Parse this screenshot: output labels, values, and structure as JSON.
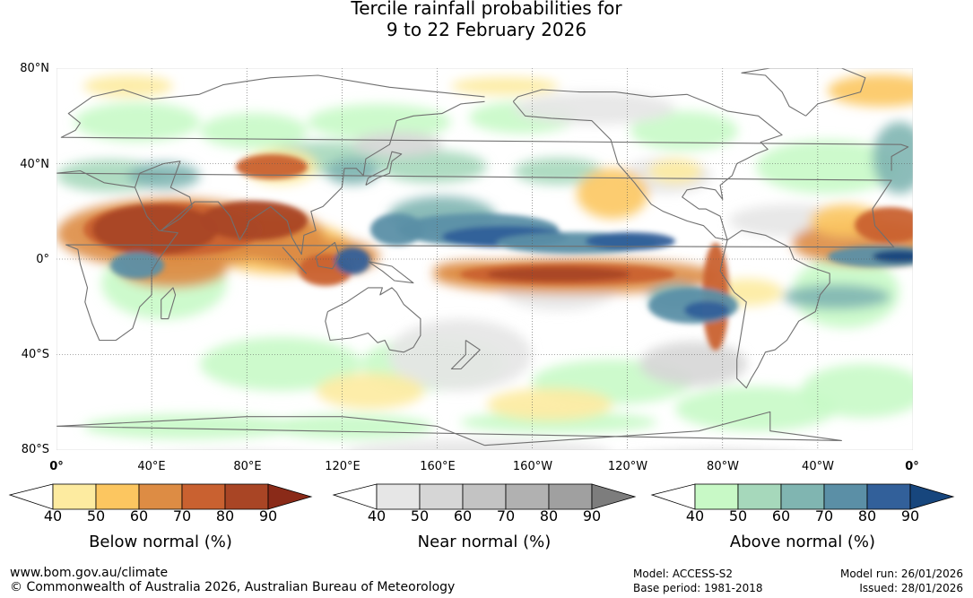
{
  "title_line1": "Tercile rainfall probabilities for",
  "title_line2": "9 to 22 February 2026",
  "map": {
    "lat_labels": [
      "80°N",
      "40°N",
      "0°",
      "40°S",
      "80°S"
    ],
    "lon_labels": [
      "0°",
      "40°E",
      "80°E",
      "120°E",
      "160°E",
      "160°W",
      "120°W",
      "80°W",
      "40°W",
      "0°"
    ],
    "colors": {
      "below": [
        "#fdeba0",
        "#fcc660",
        "#dd8c44",
        "#c96130",
        "#a94525",
        "#8a2a18"
      ],
      "near": [
        "#e6e6e6",
        "#d6d6d6",
        "#c3c3c3",
        "#b1b1b1",
        "#a0a0a0",
        "#7d7d7d"
      ],
      "above": [
        "#c8f9c6",
        "#a6d8bb",
        "#80b5b1",
        "#5b8fa6",
        "#32609a",
        "#17467d"
      ],
      "coast": "#707070"
    }
  },
  "legends": [
    {
      "title": "Below normal (%)",
      "ticks": [
        "40",
        "50",
        "60",
        "70",
        "80",
        "90"
      ]
    },
    {
      "title": "Near normal (%)",
      "ticks": [
        "40",
        "50",
        "60",
        "70",
        "80",
        "90"
      ]
    },
    {
      "title": "Above normal (%)",
      "ticks": [
        "40",
        "50",
        "60",
        "70",
        "80",
        "90"
      ]
    }
  ],
  "footer": {
    "url": "www.bom.gov.au/climate",
    "copyright": "© Commonwealth of Australia 2026, Australian Bureau of Meteorology",
    "model": "Model: ACCESS-S2",
    "base_period": "Base period: 1981-2018",
    "model_run": "Model run: 26/01/2026",
    "issued": "Issued: 28/01/2026"
  }
}
